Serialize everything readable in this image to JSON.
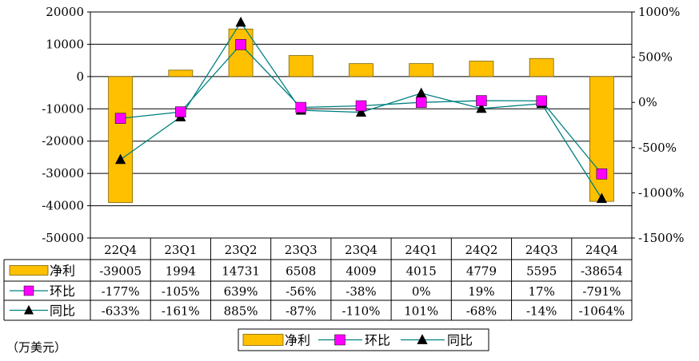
{
  "chart_data": {
    "type": "bar",
    "categories": [
      "22Q4",
      "23Q1",
      "23Q2",
      "23Q3",
      "23Q4",
      "24Q1",
      "24Q2",
      "24Q3",
      "24Q4"
    ],
    "series": [
      {
        "name": "净利",
        "kind": "bar",
        "axis": "left",
        "values": [
          -39005,
          1994,
          14731,
          6508,
          4009,
          4015,
          4779,
          5595,
          -38654
        ],
        "labels": [
          "-39005",
          "1994",
          "14731",
          "6508",
          "4009",
          "4015",
          "4779",
          "5595",
          "-38654"
        ],
        "color": "#ffc000"
      },
      {
        "name": "环比",
        "kind": "line",
        "axis": "right",
        "marker": "square",
        "values": [
          -177,
          -105,
          639,
          -56,
          -38,
          0,
          19,
          17,
          -791
        ],
        "labels": [
          "-177%",
          "-105%",
          "639%",
          "-56%",
          "-38%",
          "0%",
          "19%",
          "17%",
          "-791%"
        ],
        "color": "#ff00ff",
        "line_color": "#008080"
      },
      {
        "name": "同比",
        "kind": "line",
        "axis": "right",
        "marker": "triangle",
        "values": [
          -633,
          -161,
          885,
          -87,
          -110,
          101,
          -68,
          -14,
          -1064
        ],
        "labels": [
          "-633%",
          "-161%",
          "885%",
          "-87%",
          "-110%",
          "101%",
          "-68%",
          "-14%",
          "-1064%"
        ],
        "color": "#000000",
        "line_color": "#008080"
      }
    ],
    "y_left": {
      "min": -50000,
      "max": 20000,
      "step": 10000,
      "ticks": [
        "20000",
        "10000",
        "0",
        "-10000",
        "-20000",
        "-30000",
        "-40000",
        "-50000"
      ]
    },
    "y_right": {
      "min": -1500,
      "max": 1000,
      "step": 500,
      "ticks": [
        "1000%",
        "500%",
        "0%",
        "-500%",
        "-1000%",
        "-1500%"
      ]
    },
    "grid": true,
    "legend": "bottom",
    "data_table": true
  },
  "unit_note": "（万美元）"
}
